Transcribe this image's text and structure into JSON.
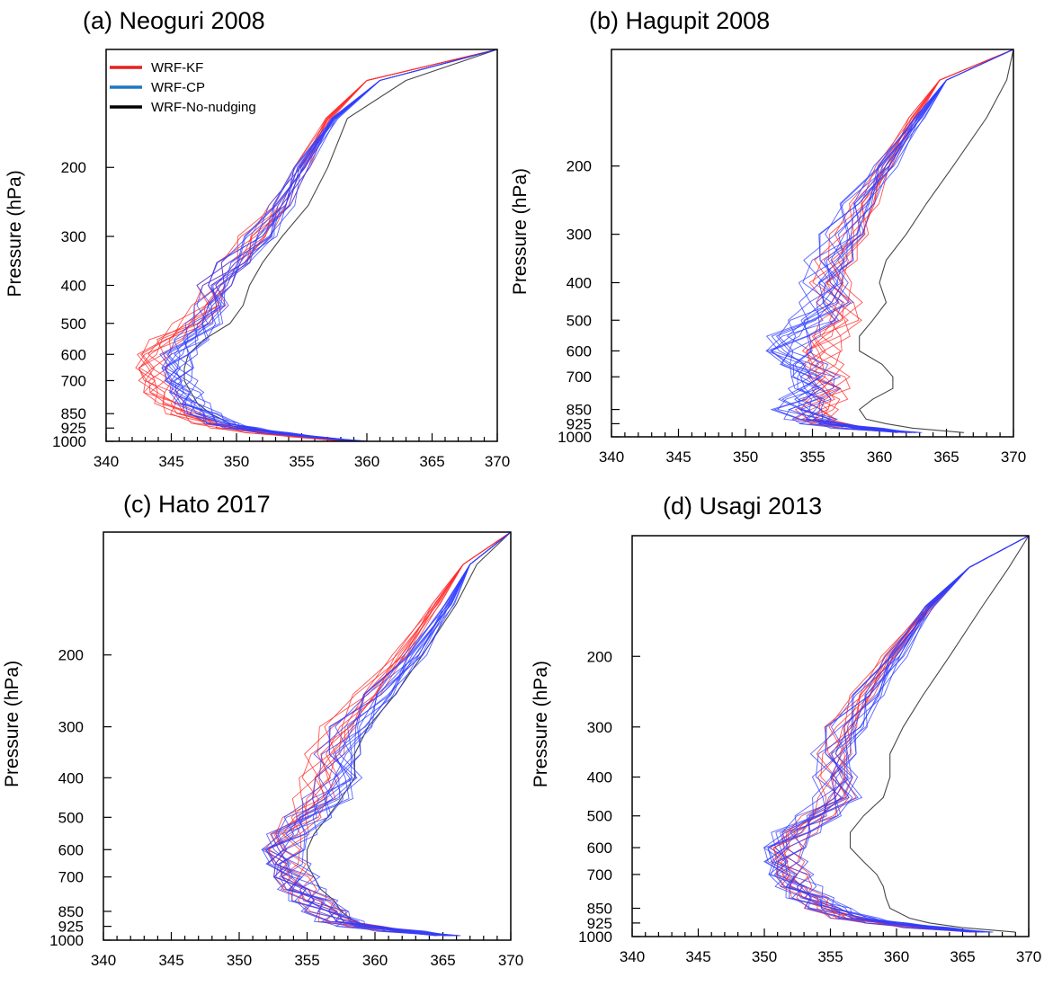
{
  "legend": [
    {
      "label": "WRF-KF",
      "color": "#e8211f"
    },
    {
      "label": "WRF-CP",
      "color": "#1b77c2"
    },
    {
      "label": "WRF-No-nudging",
      "color": "#000000"
    }
  ],
  "colors": {
    "kf": "#ff2a2a",
    "cp": "#2f3dff",
    "no_nudging": "#333333"
  },
  "chart_data": [
    {
      "type": "line",
      "title": "(a) Neoguri 2008",
      "ylabel": "Pressure (hPa)",
      "xlim": [
        340,
        370
      ],
      "ylim": [
        1000,
        100
      ],
      "y_scale": "log",
      "xticks": [
        340,
        345,
        350,
        355,
        360,
        365,
        370
      ],
      "yticks": [
        200,
        300,
        400,
        500,
        600,
        700,
        850,
        925,
        1000
      ],
      "pressure": [
        1000,
        975,
        950,
        925,
        900,
        850,
        800,
        750,
        700,
        650,
        600,
        550,
        500,
        450,
        400,
        350,
        300,
        250,
        200,
        150,
        120,
        100
      ],
      "legend_shown": true,
      "series": [
        {
          "group": "kf",
          "spread": 1.0,
          "values": [
            358.5,
            355,
            352,
            349.5,
            348,
            346,
            345,
            344,
            343.5,
            343.3,
            343.5,
            344.5,
            346.5,
            348,
            348.5,
            350,
            351.5,
            353.5,
            355,
            357,
            360,
            370
          ]
        },
        {
          "group": "cp",
          "spread": 1.0,
          "values": [
            359.5,
            356,
            353,
            350.5,
            349,
            347.5,
            346.5,
            346,
            345.5,
            345.3,
            345.5,
            346.5,
            347.5,
            348.2,
            348.5,
            350,
            352,
            353.5,
            355,
            357.5,
            361,
            370
          ]
        },
        {
          "group": "no_nudging",
          "spread": 0,
          "values": [
            359.5,
            356,
            353,
            351,
            349.5,
            348,
            347,
            346.5,
            346,
            346,
            346.3,
            347.5,
            349.5,
            350.5,
            351,
            352,
            353.5,
            355.5,
            357,
            358.5,
            363,
            370
          ]
        }
      ]
    },
    {
      "type": "line",
      "title": "(b) Hagupit 2008",
      "ylabel": "Pressure (hPa)",
      "xlim": [
        340,
        370
      ],
      "ylim": [
        1000,
        100
      ],
      "y_scale": "log",
      "xticks": [
        340,
        345,
        350,
        355,
        360,
        365,
        370
      ],
      "yticks": [
        200,
        300,
        400,
        500,
        600,
        700,
        850,
        925,
        1000
      ],
      "pressure": [
        975,
        950,
        925,
        900,
        850,
        800,
        750,
        700,
        650,
        600,
        550,
        500,
        450,
        400,
        350,
        300,
        250,
        200,
        150,
        120,
        100
      ],
      "legend_shown": false,
      "series": [
        {
          "group": "kf",
          "spread": 1.2,
          "values": [
            362,
            358.5,
            356.5,
            355.5,
            355.5,
            356,
            356.5,
            356,
            355.5,
            355.5,
            356,
            357,
            357,
            356.5,
            357,
            358,
            359,
            360.5,
            362.5,
            364.5,
            370
          ]
        },
        {
          "group": "cp",
          "spread": 1.4,
          "values": [
            362.3,
            358.5,
            356,
            355,
            354,
            354.5,
            355,
            355,
            354,
            353,
            353.5,
            355,
            356,
            356,
            356.5,
            357.5,
            358.5,
            360.5,
            363,
            365,
            370
          ]
        },
        {
          "group": "no_nudging",
          "spread": 0,
          "values": [
            366.3,
            362.5,
            360.5,
            359,
            358.5,
            359.5,
            361,
            361,
            360.2,
            358.5,
            358.5,
            359.5,
            360.5,
            360,
            360.5,
            362,
            363.5,
            365.5,
            368,
            369.5,
            370
          ]
        }
      ]
    },
    {
      "type": "line",
      "title": "(c) Hato 2017",
      "ylabel": "Pressure (hPa)",
      "xlim": [
        340,
        370
      ],
      "ylim": [
        1000,
        100
      ],
      "y_scale": "log",
      "xticks": [
        340,
        345,
        350,
        355,
        360,
        365,
        370
      ],
      "yticks": [
        200,
        300,
        400,
        500,
        600,
        700,
        850,
        925,
        1000
      ],
      "pressure": [
        975,
        950,
        925,
        900,
        850,
        800,
        750,
        700,
        650,
        600,
        550,
        500,
        450,
        400,
        350,
        300,
        250,
        200,
        150,
        120,
        100
      ],
      "legend_shown": false,
      "series": [
        {
          "group": "kf",
          "spread": 1.1,
          "values": [
            365.5,
            362,
            359.5,
            357.5,
            356.5,
            355.5,
            354.5,
            353.8,
            353.2,
            353,
            353.5,
            354.5,
            355.5,
            356,
            356.5,
            357.5,
            359.5,
            362,
            364.5,
            366.5,
            370
          ]
        },
        {
          "group": "cp",
          "spread": 1.3,
          "values": [
            365.5,
            362,
            359,
            357.5,
            356.5,
            355.5,
            354.5,
            354,
            353.3,
            353,
            353.8,
            355,
            356.5,
            357.5,
            357.5,
            358.5,
            360.5,
            363,
            365.5,
            367,
            370
          ]
        },
        {
          "group": "no_nudging",
          "spread": 0,
          "values": [
            364.5,
            361.5,
            359.5,
            358.5,
            357.5,
            357,
            356,
            355.5,
            355,
            355,
            355.5,
            356.5,
            357.5,
            358.5,
            358.5,
            359.5,
            361.5,
            363.5,
            366,
            367.5,
            370
          ]
        }
      ]
    },
    {
      "type": "line",
      "title": "(d) Usagi 2013",
      "ylabel": "Pressure (hPa)",
      "xlim": [
        340,
        370
      ],
      "ylim": [
        1000,
        100
      ],
      "y_scale": "log",
      "xticks": [
        340,
        345,
        350,
        355,
        360,
        365,
        370
      ],
      "yticks": [
        200,
        300,
        400,
        500,
        600,
        700,
        850,
        925,
        1000
      ],
      "pressure": [
        975,
        950,
        925,
        900,
        850,
        800,
        750,
        700,
        650,
        600,
        550,
        500,
        450,
        400,
        350,
        300,
        250,
        200,
        150,
        120,
        100
      ],
      "legend_shown": false,
      "series": [
        {
          "group": "kf",
          "spread": 1.0,
          "values": [
            366,
            362,
            359,
            356.5,
            354.5,
            353.5,
            352.5,
            352,
            351.5,
            351.5,
            352.5,
            354,
            355.5,
            355.5,
            355.5,
            356,
            357.5,
            359.5,
            362.5,
            365.5,
            370
          ]
        },
        {
          "group": "cp",
          "spread": 1.3,
          "values": [
            366.5,
            362.5,
            359.5,
            357,
            355,
            353.5,
            352.5,
            351.8,
            351.3,
            351.3,
            352.3,
            354,
            355.5,
            355.5,
            355.5,
            356.5,
            358,
            360,
            362.5,
            365.5,
            370
          ]
        },
        {
          "group": "no_nudging",
          "spread": 0,
          "values": [
            369,
            365,
            362.5,
            361,
            359.5,
            359.2,
            359,
            358.5,
            357.5,
            356.5,
            356.5,
            357.5,
            359,
            359.5,
            359.5,
            360.5,
            362,
            364,
            366.5,
            368.5,
            370
          ]
        }
      ]
    }
  ]
}
